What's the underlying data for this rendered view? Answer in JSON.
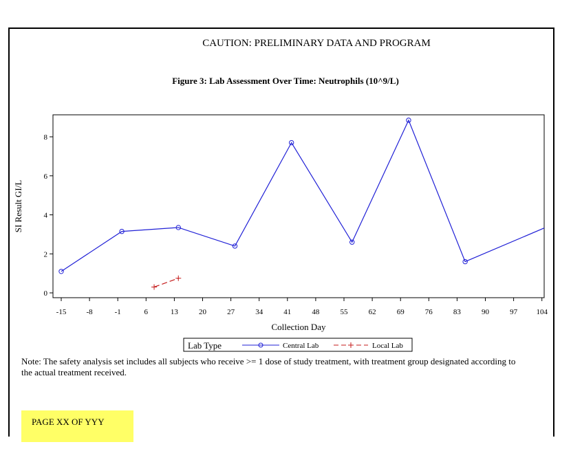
{
  "header": {
    "caution": "CAUTION: PRELIMINARY DATA AND PROGRAM",
    "figure_title": "Figure 3: Lab Assessment Over Time: Neutrophils (10^9/L)"
  },
  "footer": {
    "note_line1": "Note: The safety analysis set includes all subjects who receive >= 1 dose of study treatment, with treatment group designated according to",
    "note_line2": "the actual treatment received.",
    "page_label": "PAGE XX OF YYY"
  },
  "legend": {
    "title": "Lab Type"
  },
  "chart_data": {
    "type": "line",
    "xlabel": "Collection Day",
    "ylabel": "SI Result GI/L",
    "xlim": [
      -16,
      105
    ],
    "ylim": [
      -0.2,
      9.1
    ],
    "x_ticks": [
      -15,
      -8,
      -1,
      6,
      13,
      20,
      27,
      34,
      41,
      48,
      55,
      62,
      69,
      76,
      83,
      90,
      97,
      104
    ],
    "y_ticks": [
      0,
      2,
      4,
      6,
      8
    ],
    "grid": false,
    "legend_position": "bottom",
    "series": [
      {
        "name": "Central Lab",
        "color": "#1f1fd6",
        "marker": "circle",
        "line_style": "solid",
        "x": [
          -15,
          0,
          14,
          28,
          42,
          57,
          71,
          85,
          106
        ],
        "y": [
          1.1,
          3.15,
          3.35,
          2.4,
          7.7,
          2.6,
          8.85,
          1.6,
          3.45
        ]
      },
      {
        "name": "Local Lab",
        "color": "#c41a1a",
        "marker": "plus",
        "line_style": "dashed",
        "x": [
          8,
          14
        ],
        "y": [
          0.3,
          0.75
        ]
      }
    ]
  }
}
